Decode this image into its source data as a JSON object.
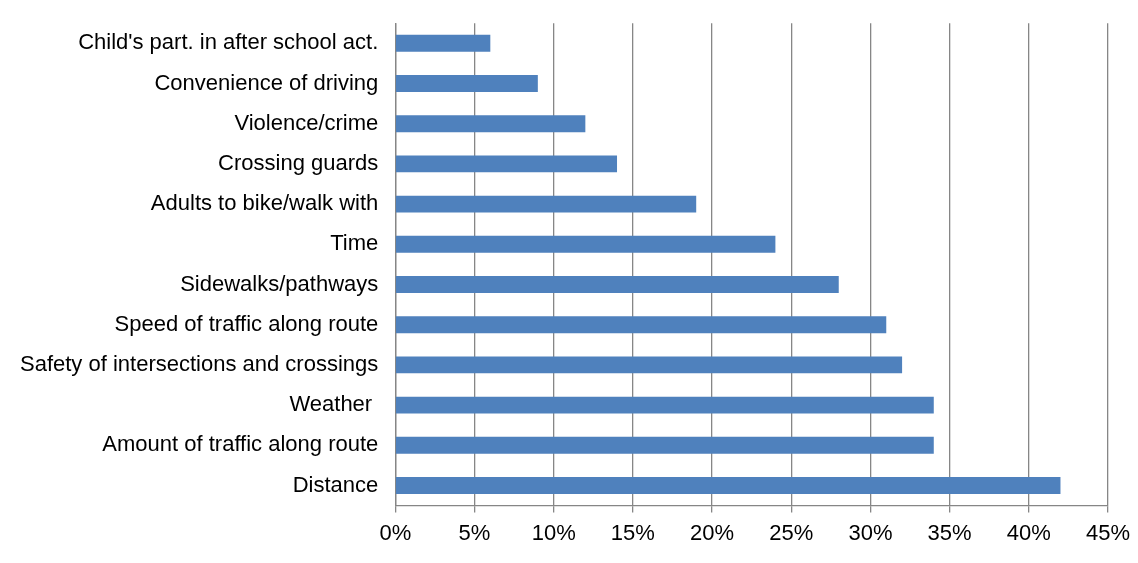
{
  "chart_data": {
    "type": "bar",
    "orientation": "horizontal",
    "categories": [
      "Child's part. in after school act.",
      "Convenience of driving",
      "Violence/crime",
      "Crossing guards",
      "Adults to bike/walk with",
      "Time",
      "Sidewalks/pathways",
      "Speed of traffic along route",
      "Safety of intersections and crossings",
      "Weather ",
      "Amount of traffic along route",
      "Distance"
    ],
    "values": [
      6,
      9,
      12,
      14,
      19,
      24,
      28,
      31,
      32,
      34,
      34,
      42
    ],
    "color": "#4f81bd",
    "xlim": [
      0,
      45
    ],
    "xticks": [
      {
        "value": 0,
        "label": "0%"
      },
      {
        "value": 5,
        "label": "5%"
      },
      {
        "value": 10,
        "label": "10%"
      },
      {
        "value": 15,
        "label": "15%"
      },
      {
        "value": 20,
        "label": "20%"
      },
      {
        "value": 25,
        "label": "25%"
      },
      {
        "value": 30,
        "label": "30%"
      },
      {
        "value": 35,
        "label": "35%"
      },
      {
        "value": 40,
        "label": "40%"
      },
      {
        "value": 45,
        "label": "45%"
      }
    ],
    "grid": "x",
    "legend": false
  }
}
